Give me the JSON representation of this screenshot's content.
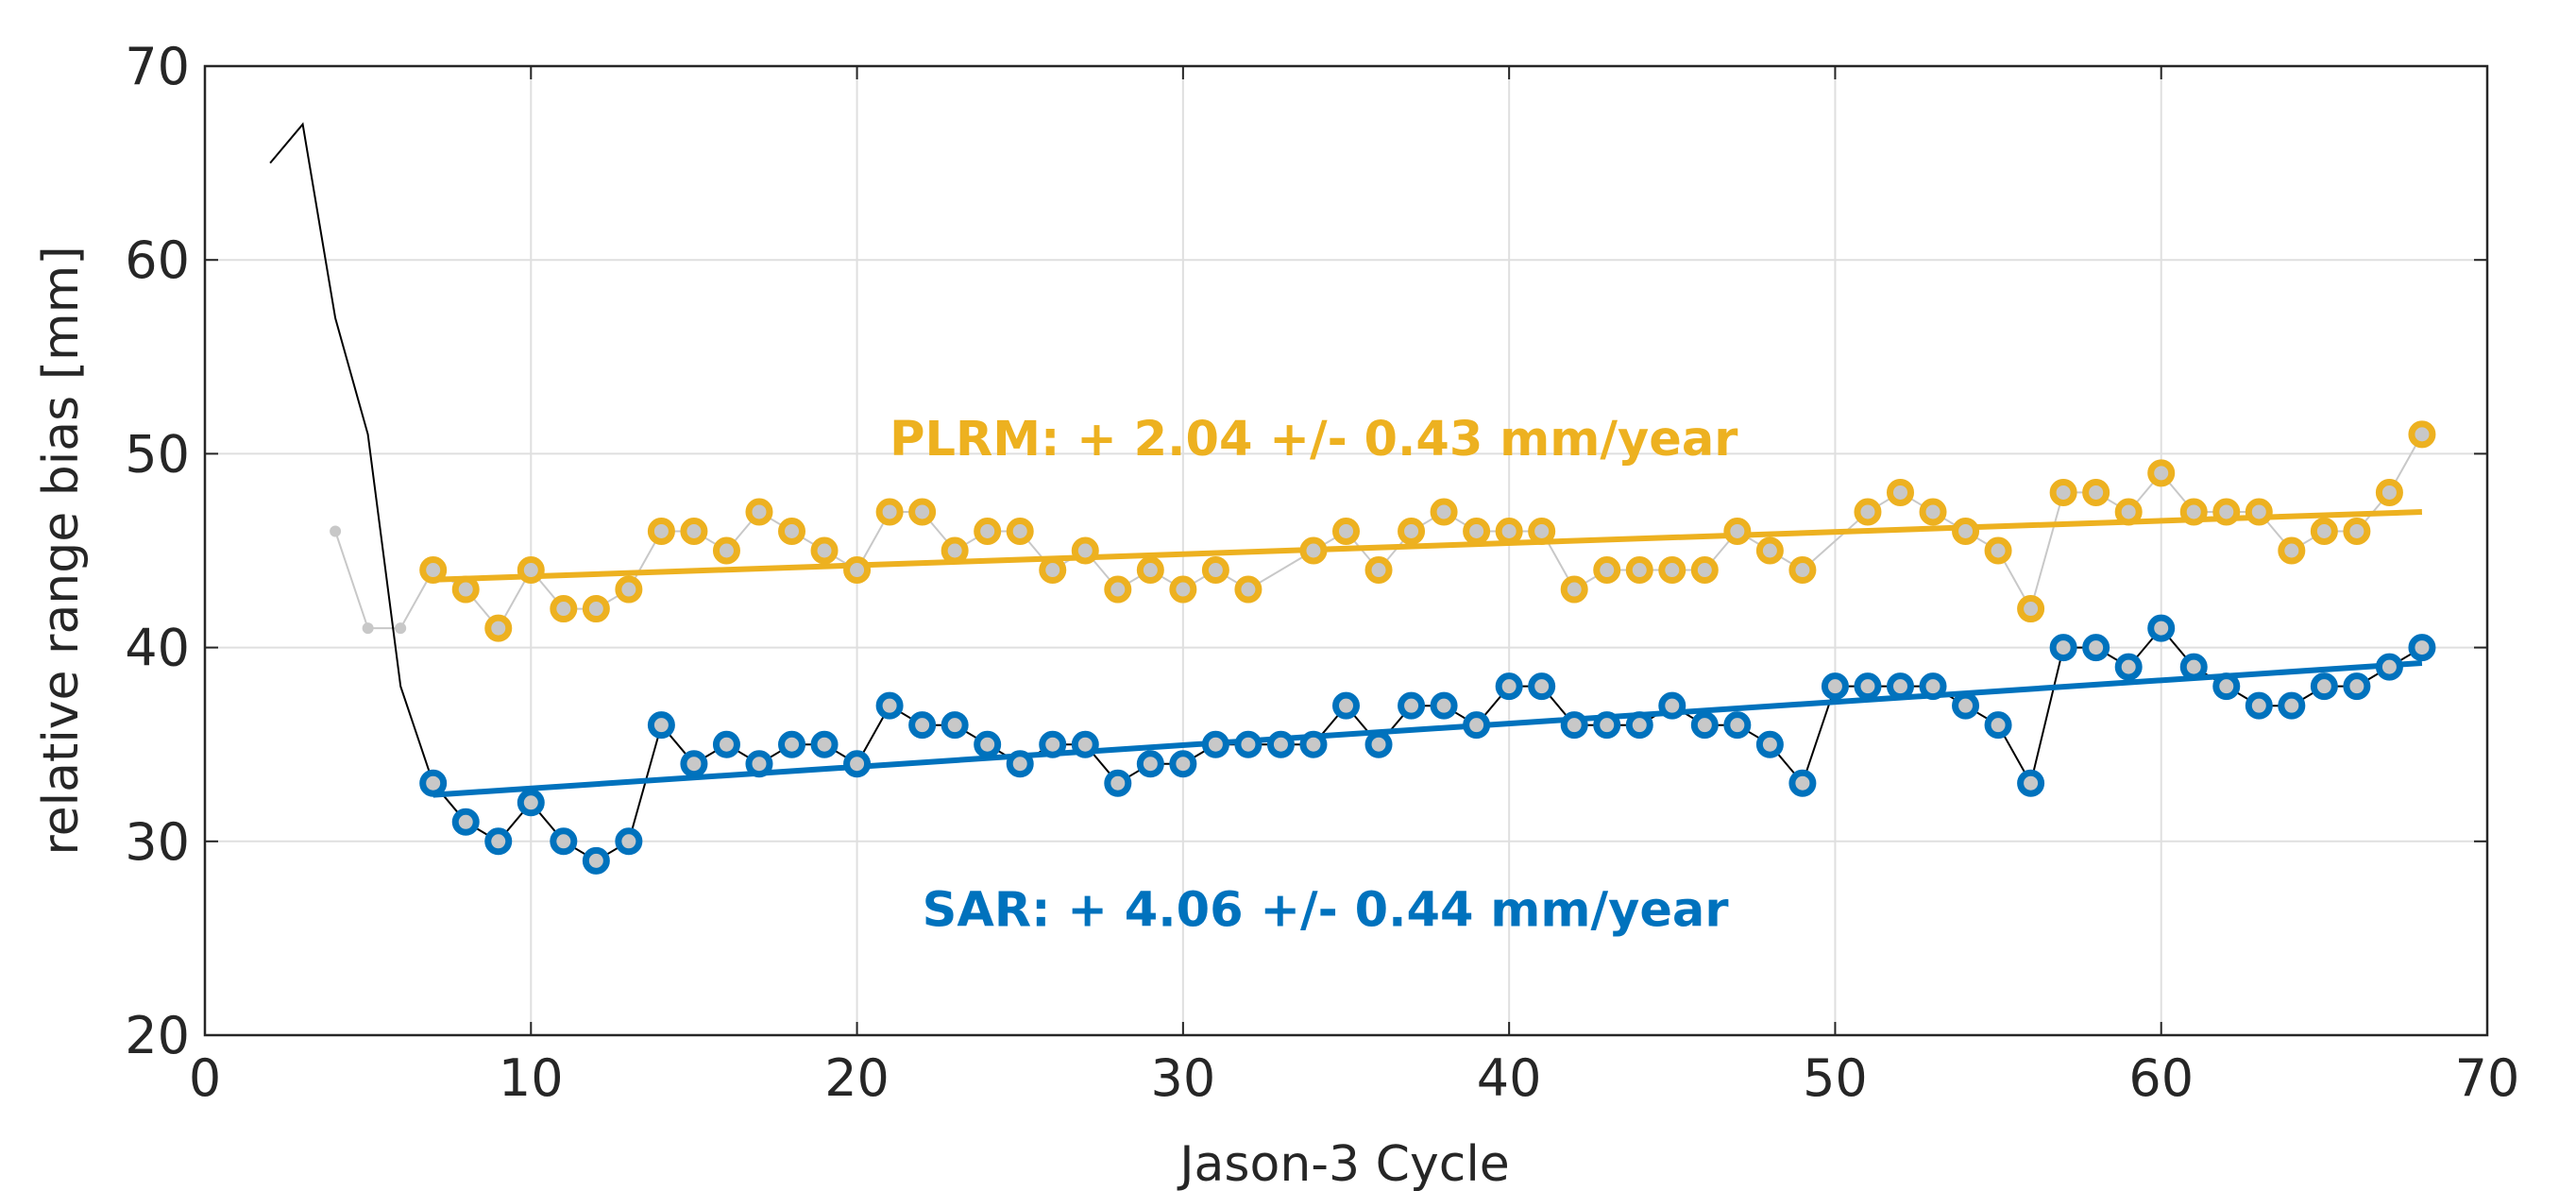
{
  "chart_data": {
    "type": "line",
    "xlabel": "Jason-3 Cycle",
    "ylabel": "relative range bias [mm]",
    "xlim": [
      0,
      70
    ],
    "xticks": [
      0,
      10,
      20,
      30,
      40,
      50,
      60,
      70
    ],
    "ylim": [
      20,
      70
    ],
    "yticks": [
      20,
      30,
      40,
      50,
      60,
      70
    ],
    "grid": true,
    "series": [
      {
        "x": [
          4,
          5,
          6,
          7
        ],
        "values": [
          46,
          41,
          41,
          44
        ],
        "color": "#c8c8c8",
        "line_color": "#c8c8c8",
        "marker": "dot",
        "line_width": 2
      },
      {
        "x": [
          2,
          3,
          4,
          5,
          6,
          7
        ],
        "values": [
          65,
          67,
          57,
          51,
          38,
          33
        ],
        "color": "#000000",
        "line_color": "#000000",
        "marker": "none",
        "line_width": 2
      },
      {
        "x": [
          7,
          8,
          9,
          10,
          11,
          12,
          13,
          14,
          15,
          16,
          17,
          18,
          19,
          20,
          21,
          22,
          23,
          24,
          25,
          26,
          27,
          28,
          29,
          30,
          31,
          32,
          34,
          35,
          36,
          37,
          38,
          39,
          40,
          41,
          42,
          43,
          44,
          45,
          46,
          47,
          48,
          49,
          51,
          52,
          53,
          54,
          55,
          56,
          57,
          58,
          59,
          60,
          61,
          62,
          63,
          64,
          65,
          66,
          67,
          68
        ],
        "values": [
          44,
          43,
          41,
          44,
          42,
          42,
          43,
          46,
          46,
          45,
          47,
          46,
          45,
          44,
          47,
          47,
          45,
          46,
          46,
          44,
          45,
          43,
          44,
          43,
          44,
          43,
          45,
          46,
          44,
          46,
          47,
          46,
          46,
          46,
          43,
          44,
          44,
          44,
          44,
          46,
          45,
          44,
          47,
          48,
          47,
          46,
          45,
          42,
          48,
          48,
          47,
          49,
          47,
          47,
          47,
          45,
          46,
          46,
          48,
          51
        ],
        "color": "#EDB120",
        "line_color": "#c8c8c8",
        "marker": "circle",
        "line_width": 2
      },
      {
        "x": [
          7,
          8,
          9,
          10,
          11,
          12,
          13,
          14,
          15,
          16,
          17,
          18,
          19,
          20,
          21,
          22,
          23,
          24,
          25,
          26,
          27,
          28,
          29,
          30,
          31,
          32,
          33,
          34,
          35,
          36,
          37,
          38,
          39,
          40,
          41,
          42,
          43,
          44,
          45,
          46,
          47,
          48,
          49,
          50,
          51,
          52,
          53,
          54,
          55,
          56,
          57,
          58,
          59,
          60,
          61,
          62,
          63,
          64,
          65,
          66,
          67,
          68
        ],
        "values": [
          33,
          31,
          30,
          32,
          30,
          29,
          30,
          36,
          34,
          35,
          34,
          35,
          35,
          34,
          37,
          36,
          36,
          35,
          34,
          35,
          35,
          33,
          34,
          34,
          35,
          35,
          35,
          35,
          37,
          35,
          37,
          37,
          36,
          38,
          38,
          36,
          36,
          36,
          37,
          36,
          36,
          35,
          33,
          38,
          38,
          38,
          38,
          37,
          36,
          33,
          40,
          40,
          39,
          41,
          39,
          38,
          37,
          37,
          38,
          38,
          39,
          40
        ],
        "color": "#0072BD",
        "line_color": "#000000",
        "marker": "circle",
        "line_width": 2
      },
      {
        "x": [
          7,
          68
        ],
        "values": [
          43.5,
          47.0
        ],
        "color": "#EDB120",
        "line_color": "#EDB120",
        "marker": "none",
        "line_width": 6
      },
      {
        "x": [
          7,
          68
        ],
        "values": [
          32.4,
          39.2
        ],
        "color": "#0072BD",
        "line_color": "#0072BD",
        "marker": "none",
        "line_width": 6
      }
    ],
    "annotations": [
      {
        "text": "PLRM: + 2.04 +/- 0.43 mm/year",
        "color": "#EDB120"
      },
      {
        "text": "SAR: + 4.06 +/- 0.44 mm/year",
        "color": "#0072BD"
      }
    ]
  }
}
